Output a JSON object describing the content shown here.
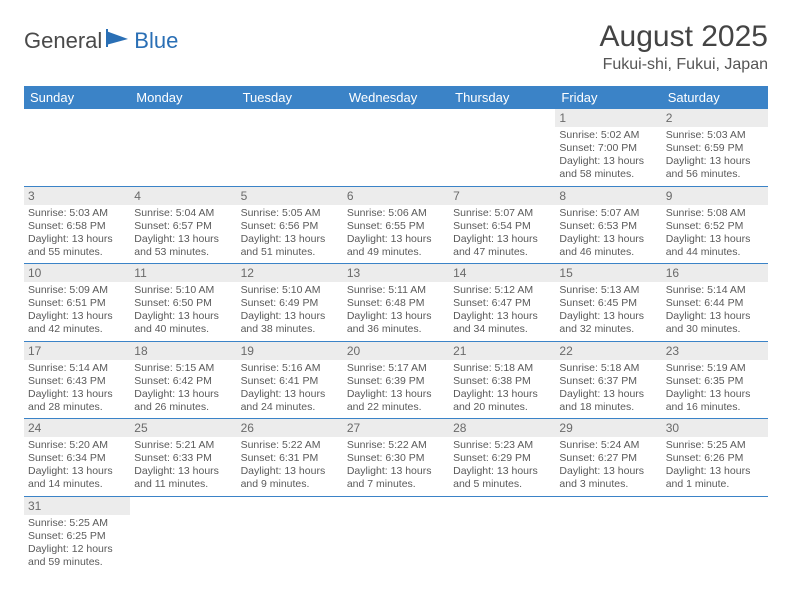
{
  "logo": {
    "part1": "General",
    "part2": "Blue"
  },
  "title": "August 2025",
  "location": "Fukui-shi, Fukui, Japan",
  "day_headers": [
    "Sunday",
    "Monday",
    "Tuesday",
    "Wednesday",
    "Thursday",
    "Friday",
    "Saturday"
  ],
  "colors": {
    "header_bg": "#3b83c7",
    "header_text": "#ffffff",
    "daynum_bg": "#ececec",
    "border": "#3b83c7",
    "logo_blue": "#2a6fb5"
  },
  "weeks": [
    [
      null,
      null,
      null,
      null,
      null,
      {
        "n": "1",
        "sr": "5:02 AM",
        "ss": "7:00 PM",
        "dl": "13 hours and 58 minutes."
      },
      {
        "n": "2",
        "sr": "5:03 AM",
        "ss": "6:59 PM",
        "dl": "13 hours and 56 minutes."
      }
    ],
    [
      {
        "n": "3",
        "sr": "5:03 AM",
        "ss": "6:58 PM",
        "dl": "13 hours and 55 minutes."
      },
      {
        "n": "4",
        "sr": "5:04 AM",
        "ss": "6:57 PM",
        "dl": "13 hours and 53 minutes."
      },
      {
        "n": "5",
        "sr": "5:05 AM",
        "ss": "6:56 PM",
        "dl": "13 hours and 51 minutes."
      },
      {
        "n": "6",
        "sr": "5:06 AM",
        "ss": "6:55 PM",
        "dl": "13 hours and 49 minutes."
      },
      {
        "n": "7",
        "sr": "5:07 AM",
        "ss": "6:54 PM",
        "dl": "13 hours and 47 minutes."
      },
      {
        "n": "8",
        "sr": "5:07 AM",
        "ss": "6:53 PM",
        "dl": "13 hours and 46 minutes."
      },
      {
        "n": "9",
        "sr": "5:08 AM",
        "ss": "6:52 PM",
        "dl": "13 hours and 44 minutes."
      }
    ],
    [
      {
        "n": "10",
        "sr": "5:09 AM",
        "ss": "6:51 PM",
        "dl": "13 hours and 42 minutes."
      },
      {
        "n": "11",
        "sr": "5:10 AM",
        "ss": "6:50 PM",
        "dl": "13 hours and 40 minutes."
      },
      {
        "n": "12",
        "sr": "5:10 AM",
        "ss": "6:49 PM",
        "dl": "13 hours and 38 minutes."
      },
      {
        "n": "13",
        "sr": "5:11 AM",
        "ss": "6:48 PM",
        "dl": "13 hours and 36 minutes."
      },
      {
        "n": "14",
        "sr": "5:12 AM",
        "ss": "6:47 PM",
        "dl": "13 hours and 34 minutes."
      },
      {
        "n": "15",
        "sr": "5:13 AM",
        "ss": "6:45 PM",
        "dl": "13 hours and 32 minutes."
      },
      {
        "n": "16",
        "sr": "5:14 AM",
        "ss": "6:44 PM",
        "dl": "13 hours and 30 minutes."
      }
    ],
    [
      {
        "n": "17",
        "sr": "5:14 AM",
        "ss": "6:43 PM",
        "dl": "13 hours and 28 minutes."
      },
      {
        "n": "18",
        "sr": "5:15 AM",
        "ss": "6:42 PM",
        "dl": "13 hours and 26 minutes."
      },
      {
        "n": "19",
        "sr": "5:16 AM",
        "ss": "6:41 PM",
        "dl": "13 hours and 24 minutes."
      },
      {
        "n": "20",
        "sr": "5:17 AM",
        "ss": "6:39 PM",
        "dl": "13 hours and 22 minutes."
      },
      {
        "n": "21",
        "sr": "5:18 AM",
        "ss": "6:38 PM",
        "dl": "13 hours and 20 minutes."
      },
      {
        "n": "22",
        "sr": "5:18 AM",
        "ss": "6:37 PM",
        "dl": "13 hours and 18 minutes."
      },
      {
        "n": "23",
        "sr": "5:19 AM",
        "ss": "6:35 PM",
        "dl": "13 hours and 16 minutes."
      }
    ],
    [
      {
        "n": "24",
        "sr": "5:20 AM",
        "ss": "6:34 PM",
        "dl": "13 hours and 14 minutes."
      },
      {
        "n": "25",
        "sr": "5:21 AM",
        "ss": "6:33 PM",
        "dl": "13 hours and 11 minutes."
      },
      {
        "n": "26",
        "sr": "5:22 AM",
        "ss": "6:31 PM",
        "dl": "13 hours and 9 minutes."
      },
      {
        "n": "27",
        "sr": "5:22 AM",
        "ss": "6:30 PM",
        "dl": "13 hours and 7 minutes."
      },
      {
        "n": "28",
        "sr": "5:23 AM",
        "ss": "6:29 PM",
        "dl": "13 hours and 5 minutes."
      },
      {
        "n": "29",
        "sr": "5:24 AM",
        "ss": "6:27 PM",
        "dl": "13 hours and 3 minutes."
      },
      {
        "n": "30",
        "sr": "5:25 AM",
        "ss": "6:26 PM",
        "dl": "13 hours and 1 minute."
      }
    ],
    [
      {
        "n": "31",
        "sr": "5:25 AM",
        "ss": "6:25 PM",
        "dl": "12 hours and 59 minutes."
      },
      null,
      null,
      null,
      null,
      null,
      null
    ]
  ],
  "labels": {
    "sunrise": "Sunrise: ",
    "sunset": "Sunset: ",
    "daylight": "Daylight: "
  }
}
